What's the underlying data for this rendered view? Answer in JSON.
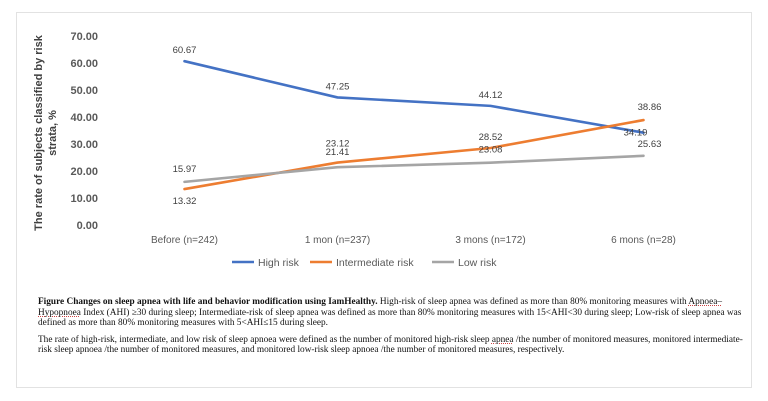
{
  "chart_data": {
    "type": "line",
    "title": "",
    "xlabel": "",
    "ylabel": "The rate of subjects classified by risk strata, %",
    "ylabel_lines": [
      "The rate of subjects classified by risk",
      "strata, %"
    ],
    "ylim": [
      0,
      70
    ],
    "yticks": [
      "0.00",
      "10.00",
      "20.00",
      "30.00",
      "40.00",
      "50.00",
      "60.00",
      "70.00"
    ],
    "grid": false,
    "legend_position": "bottom",
    "categories": [
      "Before  (n=242)",
      "1 mon (n=237)",
      "3 mons (n=172)",
      "6 mons (n=28)"
    ],
    "series": [
      {
        "name": "High risk",
        "color": "#4472c4",
        "values": [
          60.67,
          47.25,
          44.12,
          34.19
        ],
        "labels": [
          "60.67",
          "47.25",
          "44.12",
          "34.19"
        ]
      },
      {
        "name": "Intermediate risk",
        "color": "#ed7d31",
        "values": [
          13.32,
          23.12,
          28.52,
          38.86
        ],
        "labels": [
          "13.32",
          "23.12",
          "28.52",
          "38.86"
        ]
      },
      {
        "name": "Low risk",
        "color": "#a5a5a5",
        "values": [
          15.97,
          21.41,
          23.08,
          25.63
        ],
        "labels": [
          "15.97",
          "21.41",
          "23.08",
          "25.63"
        ]
      }
    ]
  },
  "caption": {
    "title": "Figure  Changes on sleep apnea with life and behavior modification using IamHealthy.",
    "para1_a": "High-risk of sleep apnea was defined as more than 80% monitoring measures with",
    "para1_b": "Apnoea–Hypopnoea",
    "para1_c": "Index (AHI) ≥30 during sleep; Intermediate-risk of sleep apnea was defined as more than 80% monitoring measures with 15<AHI<30 during sleep; Low-risk of sleep apnea was defined as more than 80% monitoring measures with 5<AHI≤15 during sleep.",
    "para2_a": "The rate of high-risk, intermediate, and low risk of sleep apnoea were defined as the number of  monitored high-risk sleep",
    "para2_b": "apnea",
    "para2_c": "/the number of monitored measures, monitored intermediate-risk sleep apnoea /the number of monitored measures, and monitored low-risk sleep apnoea /the number of monitored measures, respectively."
  }
}
